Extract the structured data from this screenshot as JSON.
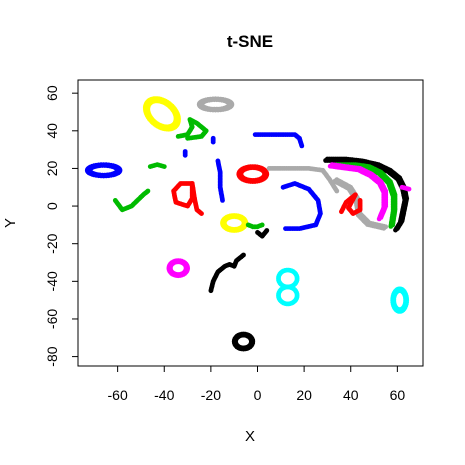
{
  "chart_data": {
    "type": "scatter",
    "title": "t-SNE",
    "xlabel": "X",
    "ylabel": "Y",
    "xlim": [
      -77,
      71
    ],
    "ylim": [
      -85,
      67
    ],
    "xticks": [
      -60,
      -40,
      -20,
      0,
      20,
      40,
      60
    ],
    "yticks": [
      -80,
      -60,
      -40,
      -20,
      0,
      20,
      40,
      60
    ],
    "xtick_labels": [
      "-60",
      "-40",
      "-20",
      "0",
      "20",
      "40",
      "60"
    ],
    "ytick_labels": [
      "-80",
      "-60",
      "-40",
      "-20",
      "0",
      "20",
      "40",
      "60"
    ],
    "grid": false,
    "legend": "none",
    "point_shape": "filled circle",
    "clusters": [
      {
        "color": "#0000FF",
        "shape": "loop",
        "cx": -66,
        "cy": 19,
        "rx": 7,
        "ry": 3
      },
      {
        "color": "#00BB00",
        "shape": "check",
        "points": [
          [
            -61,
            3
          ],
          [
            -58,
            -2
          ],
          [
            -54,
            0
          ],
          [
            -49,
            6
          ],
          [
            -47,
            8
          ]
        ]
      },
      {
        "color": "#00BB00",
        "shape": "arc",
        "points": [
          [
            -46,
            21
          ],
          [
            -43,
            22
          ],
          [
            -40,
            21
          ]
        ]
      },
      {
        "color": "#FFFF00",
        "shape": "loop",
        "cx": -41,
        "cy": 49,
        "rx": 6,
        "ry": 9,
        "rot": 35
      },
      {
        "color": "#00BB00",
        "shape": "figure",
        "points": [
          [
            -34,
            37
          ],
          [
            -30,
            38
          ],
          [
            -28,
            42
          ],
          [
            -29,
            46
          ],
          [
            -26,
            44
          ],
          [
            -22,
            40
          ],
          [
            -24,
            37
          ],
          [
            -30,
            36
          ]
        ]
      },
      {
        "color": "#0000FF",
        "shape": "dash",
        "points": [
          [
            -31,
            27
          ],
          [
            -31,
            29
          ]
        ]
      },
      {
        "color": "#0000FF",
        "shape": "dash",
        "points": [
          [
            -19,
            34
          ],
          [
            -19,
            36
          ]
        ]
      },
      {
        "color": "#AAAAAA",
        "shape": "loop",
        "cx": -18,
        "cy": 54,
        "rx": 7,
        "ry": 3
      },
      {
        "color": "#FF0000",
        "shape": "nine",
        "points": [
          [
            -28,
            12
          ],
          [
            -33,
            12
          ],
          [
            -36,
            8
          ],
          [
            -35,
            2
          ],
          [
            -30,
            0
          ],
          [
            -28,
            4
          ],
          [
            -28,
            12
          ],
          [
            -27,
            4
          ],
          [
            -26,
            -2
          ],
          [
            -24,
            -4
          ]
        ]
      },
      {
        "color": "#0000FF",
        "shape": "stroke",
        "points": [
          [
            -17,
            24
          ],
          [
            -16,
            18
          ],
          [
            -16,
            10
          ],
          [
            -15,
            3
          ]
        ]
      },
      {
        "color": "#FFFF00",
        "shape": "loop",
        "cx": -10,
        "cy": -9,
        "rx": 5,
        "ry": 4
      },
      {
        "color": "#FF00FF",
        "shape": "loop",
        "cx": -34,
        "cy": -33,
        "rx": 4,
        "ry": 4
      },
      {
        "color": "#000000",
        "shape": "curve",
        "points": [
          [
            -20,
            -45
          ],
          [
            -19,
            -40
          ],
          [
            -17,
            -35
          ],
          [
            -14,
            -32
          ],
          [
            -12,
            -31
          ],
          [
            -10,
            -32
          ],
          [
            -9,
            -29
          ],
          [
            -7,
            -27
          ],
          [
            -6,
            -26
          ]
        ]
      },
      {
        "color": "#000000",
        "shape": "loop",
        "cx": -6,
        "cy": -72,
        "rx": 4,
        "ry": 4
      },
      {
        "color": "#0000FF",
        "shape": "arc",
        "points": [
          [
            -1,
            38
          ],
          [
            6,
            38
          ],
          [
            12,
            38
          ],
          [
            16,
            38
          ],
          [
            18,
            36
          ],
          [
            19,
            32
          ]
        ]
      },
      {
        "color": "#FF0000",
        "shape": "loop",
        "cx": -2,
        "cy": 17,
        "rx": 6,
        "ry": 4
      },
      {
        "color": "#00BB00",
        "shape": "stroke",
        "points": [
          [
            -4,
            -10
          ],
          [
            -2,
            -11
          ],
          [
            0,
            -11
          ],
          [
            2,
            -10
          ]
        ]
      },
      {
        "color": "#000000",
        "shape": "scatter",
        "points": [
          [
            0,
            -14
          ],
          [
            2,
            -16
          ],
          [
            4,
            -13
          ]
        ]
      },
      {
        "color": "#0000FF",
        "shape": "arc",
        "points": [
          [
            11,
            10
          ],
          [
            16,
            12
          ],
          [
            22,
            9
          ],
          [
            26,
            3
          ],
          [
            27,
            -4
          ],
          [
            25,
            -10
          ],
          [
            18,
            -12
          ],
          [
            12,
            -12
          ]
        ]
      },
      {
        "color": "#00FFFF",
        "shape": "eight",
        "cx": 13,
        "cy": -43,
        "rx": 4,
        "ry": 9
      },
      {
        "color": "#AAAAAA",
        "shape": "stroke",
        "points": [
          [
            5,
            20
          ],
          [
            10,
            20
          ],
          [
            22,
            20
          ],
          [
            28,
            19
          ],
          [
            31,
            14
          ],
          [
            34,
            8
          ]
        ]
      },
      {
        "color": "#000000",
        "shape": "band",
        "points": [
          [
            30,
            25
          ],
          [
            38,
            25
          ],
          [
            45,
            24
          ],
          [
            52,
            22
          ],
          [
            57,
            19
          ],
          [
            61,
            15
          ],
          [
            63,
            10
          ],
          [
            64,
            4
          ],
          [
            63,
            -2
          ],
          [
            62,
            -8
          ],
          [
            60,
            -12
          ]
        ]
      },
      {
        "color": "#00BB00",
        "shape": "band",
        "points": [
          [
            34,
            22
          ],
          [
            42,
            22
          ],
          [
            48,
            21
          ],
          [
            53,
            18
          ],
          [
            57,
            13
          ],
          [
            59,
            6
          ],
          [
            59,
            -2
          ],
          [
            58,
            -10
          ]
        ]
      },
      {
        "color": "#FF00FF",
        "shape": "band",
        "points": [
          [
            32,
            22
          ],
          [
            38,
            21
          ],
          [
            44,
            20
          ],
          [
            49,
            17
          ],
          [
            53,
            13
          ],
          [
            55,
            8
          ],
          [
            55,
            0
          ],
          [
            53,
            -6
          ]
        ]
      },
      {
        "color": "#AAAAAA",
        "shape": "band",
        "points": [
          [
            34,
            14
          ],
          [
            40,
            10
          ],
          [
            43,
            4
          ],
          [
            44,
            -4
          ],
          [
            48,
            -9
          ],
          [
            55,
            -11
          ]
        ]
      },
      {
        "color": "#FF0000",
        "shape": "blob",
        "points": [
          [
            36,
            -3
          ],
          [
            38,
            2
          ],
          [
            40,
            4
          ],
          [
            42,
            6
          ],
          [
            39,
            -1
          ],
          [
            41,
            -4
          ],
          [
            44,
            -2
          ],
          [
            44,
            3
          ]
        ]
      },
      {
        "color": "#FF00FF",
        "shape": "dash",
        "points": [
          [
            62,
            10
          ],
          [
            65,
            9
          ]
        ]
      },
      {
        "color": "#00FFFF",
        "shape": "loop",
        "cx": 61,
        "cy": -50,
        "rx": 3,
        "ry": 6
      }
    ]
  }
}
